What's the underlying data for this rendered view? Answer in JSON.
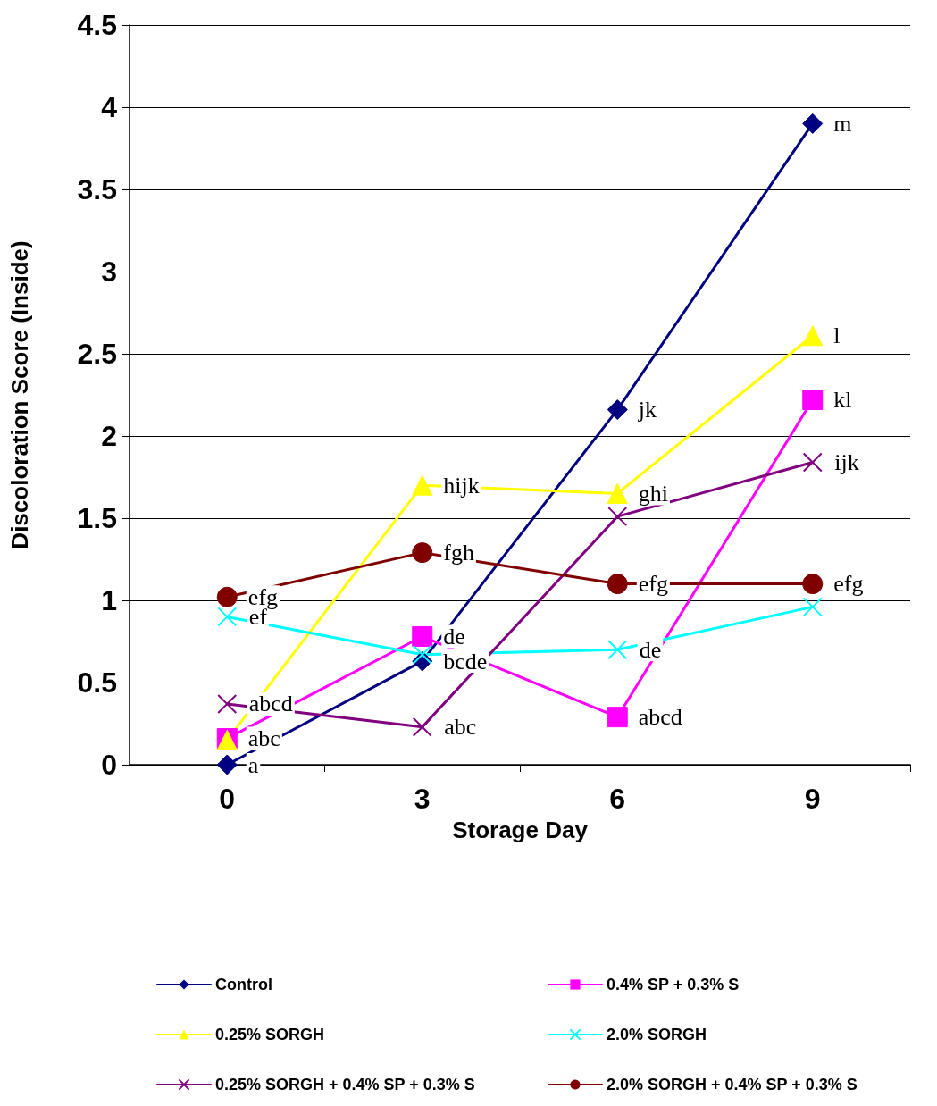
{
  "chart_data": {
    "type": "line",
    "xlabel": "Storage Day",
    "ylabel": "Discoloration Score (Inside)",
    "categories": [
      "0",
      "3",
      "6",
      "9"
    ],
    "series": [
      {
        "name": "Control",
        "color": "#000080",
        "marker": "diamond",
        "values": [
          0,
          0.63,
          2.16,
          3.9
        ],
        "value_labels": [
          "a",
          "bcde",
          "jk",
          "m"
        ]
      },
      {
        "name": "0.4% SP + 0.3% S",
        "color": "#ff00ff",
        "marker": "square",
        "values": [
          0.16,
          0.78,
          0.29,
          2.22
        ],
        "value_labels": [
          "abc",
          "de",
          "abcd",
          "kl"
        ]
      },
      {
        "name": "0.25% SORGH",
        "color": "#ffff00",
        "marker": "triangle",
        "values": [
          0.15,
          1.7,
          1.65,
          2.61
        ],
        "value_labels": [
          null,
          "hijk",
          "ghi",
          "l"
        ]
      },
      {
        "name": "2.0% SORGH",
        "color": "#00ffff",
        "marker": "cross",
        "values": [
          0.9,
          0.67,
          0.7,
          0.96
        ],
        "value_labels": [
          "ef",
          null,
          "de",
          null
        ]
      },
      {
        "name": "0.25% SORGH + 0.4% SP + 0.3% S",
        "color": "#800080",
        "marker": "cross",
        "values": [
          0.37,
          0.23,
          1.51,
          1.84
        ],
        "value_labels": [
          "abcd",
          "abc",
          null,
          "ijk"
        ]
      },
      {
        "name": "2.0% SORGH + 0.4% SP + 0.3% S",
        "color": "#800000",
        "marker": "circle",
        "values": [
          1.02,
          1.29,
          1.1,
          1.1
        ],
        "value_labels": [
          "efg",
          "fgh",
          "efg",
          "efg"
        ]
      }
    ],
    "ylim": [
      0,
      4.5
    ],
    "yticks": [
      0,
      0.5,
      1,
      1.5,
      2,
      2.5,
      3,
      3.5,
      4,
      4.5
    ],
    "grid": "y",
    "legend": "bottom",
    "line_style": "solid"
  }
}
